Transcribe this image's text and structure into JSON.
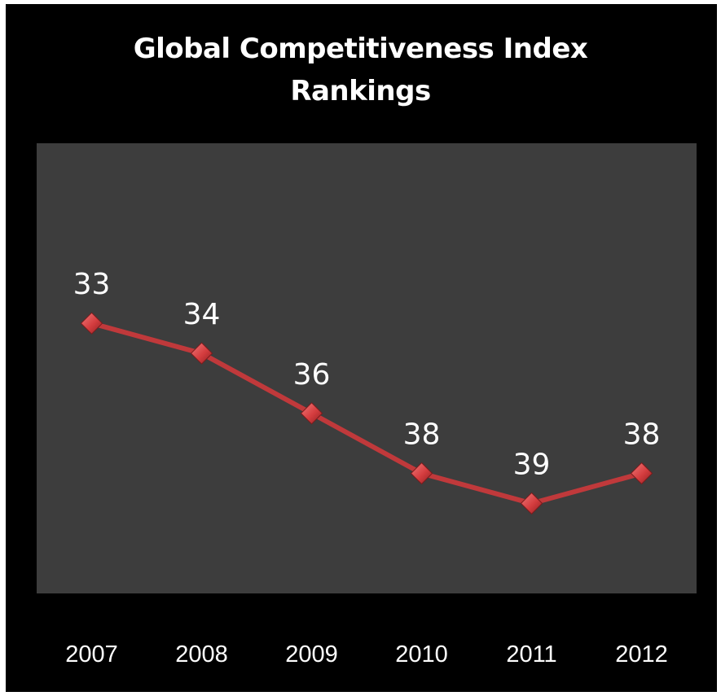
{
  "chart_data": {
    "type": "line",
    "title": "Global Competitiveness Index Rankings",
    "title_lines": [
      "Global Competitiveness Index",
      "Rankings"
    ],
    "categories": [
      "2007",
      "2008",
      "2009",
      "2010",
      "2011",
      "2012"
    ],
    "series": [
      {
        "values": [
          33,
          34,
          36,
          38,
          39,
          38
        ]
      }
    ],
    "xlabel": "",
    "ylabel": "",
    "ylim": [
      27,
      42
    ],
    "y_inverted": true,
    "grid": false,
    "legend": "none",
    "data_labels": true,
    "colors": {
      "background": "#000000",
      "plot_area": "#3d3d3d",
      "line": "#c0393b",
      "marker": "#d94446",
      "text": "#ffffff"
    }
  }
}
